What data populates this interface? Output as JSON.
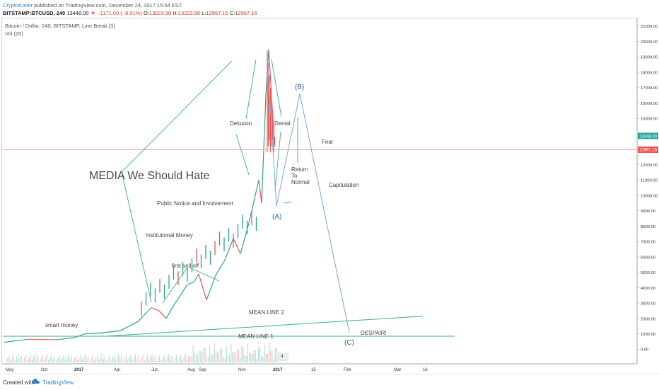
{
  "header": {
    "author": "CryptoKotter",
    "published": "published on TradingView.com, December 24, 2017 15:54 EST",
    "symbol": "BITSTAMP:BTCUSD, 240",
    "last": "13448.00",
    "change": "−1171.00 (−8.01%)",
    "o_label": "O:",
    "o_value": "13223.98",
    "h_label": "H:",
    "h_value": "13223.98",
    "l_label": "L:",
    "l_value": "12967.16",
    "c_label": "C:",
    "c_value": "12967.16"
  },
  "legend": {
    "title": "Bitcoin / Dollar, 240, BITSTAMP, Line Break [3]",
    "indicator": "Vol (20)"
  },
  "footer": {
    "created_with": "Created with",
    "brand": "TradingView"
  },
  "colors": {
    "up": "#26a69a",
    "down": "#ef5350",
    "annotation_line": "#37b37e",
    "wave_line": "#7ea6d8",
    "fear_line": "#f1a7b0",
    "badge_green": "#26a69a",
    "badge_red": "#ef5350"
  },
  "price_badges": [
    {
      "text": "13448.00",
      "price": 13448,
      "color": "#26a69a"
    },
    {
      "text": "12967.16",
      "price": 12967.16,
      "color": "#ef5350"
    }
  ],
  "event_icon": "4",
  "chart_data": {
    "type": "line",
    "title": "Bitcoin / Dollar, 240, BITSTAMP, Line Break [3]",
    "xlabel": "",
    "ylabel": "",
    "x_ticks": [
      "May",
      "Oct",
      "2017",
      "Apr",
      "Jun",
      "Aug",
      "Sep",
      "Nov",
      "2017",
      "15",
      "Feb",
      "Mar",
      "16"
    ],
    "y_ticks": [
      0,
      1000,
      2000,
      3000,
      4000,
      5000,
      6000,
      7000,
      8000,
      9000,
      10000,
      11000,
      12000,
      13000,
      14000,
      15000,
      16000,
      17000,
      18000,
      19000,
      20000,
      21000
    ],
    "y_tick_labels": [
      "0.00",
      "1000.00",
      "2000.00",
      "3000.00",
      "4000.00",
      "5000.00",
      "6000.00",
      "7000.00",
      "8000.00",
      "9000.00",
      "10000.00",
      "11000.00",
      "12000.00",
      "13000.00",
      "14000.00",
      "15000.00",
      "16000.00",
      "17000.00",
      "18000.00",
      "19000.00",
      "20000.00",
      "21000.00"
    ],
    "ylim": [
      -900,
      21500
    ],
    "grid": false,
    "series": [
      {
        "name": "BTCUSD Line Break",
        "x": [
          "May",
          "Jul",
          "Oct",
          "Dec",
          "2017",
          "Feb",
          "Apr",
          "May",
          "Jun",
          "Jun",
          "Jul",
          "Jul",
          "Aug",
          "Aug",
          "Sep",
          "Sep",
          "Oct",
          "Oct",
          "Nov",
          "Nov",
          "Dec",
          "Dec",
          "Dec",
          "Dec",
          "Dec",
          "Dec"
        ],
        "values": [
          450,
          650,
          620,
          760,
          1000,
          1050,
          1200,
          1800,
          2700,
          2500,
          2000,
          2800,
          4200,
          4400,
          4900,
          3200,
          4800,
          5800,
          7200,
          6200,
          8200,
          11000,
          9500,
          16500,
          19500,
          13448
        ]
      }
    ],
    "annotations": {
      "texts": [
        "MEDIA We Should Hate",
        "smart money",
        "Institutional Money",
        "Public Notice and Involvement",
        "first sell off",
        "Delusion",
        "Denial",
        "Return To Normal",
        "Fear",
        "Capitulation",
        "DESPAIR!",
        "MEAN LINE 2",
        "MEAN LINE 1",
        "(A)",
        "(B)",
        "(C)"
      ],
      "fear_level": 12967.16,
      "mean_line_1": 850,
      "mean_line_2": [
        850,
        2150
      ],
      "wave_points": {
        "A": 9300,
        "B": 16600,
        "C": 1100
      }
    }
  }
}
